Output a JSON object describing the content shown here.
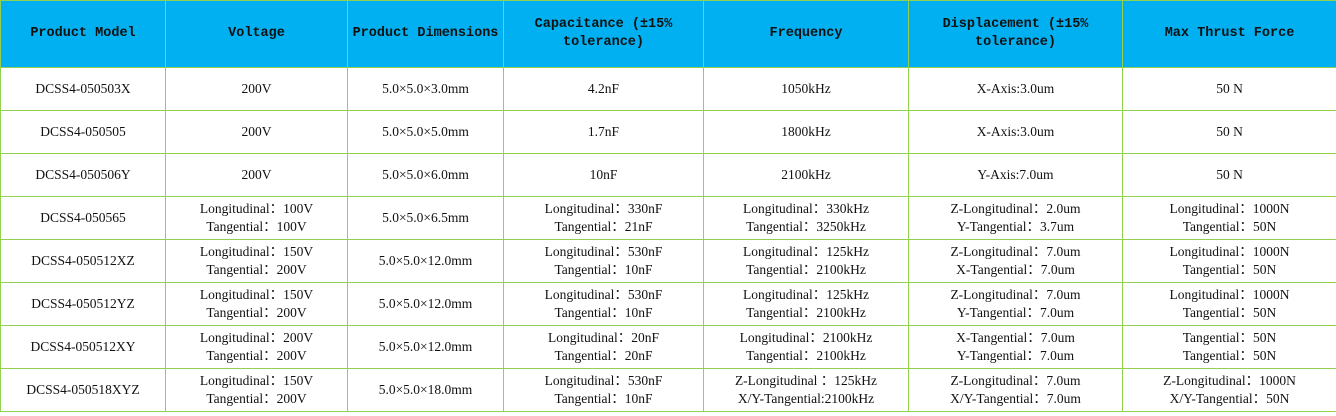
{
  "colors": {
    "header_bg": "#00b0f0",
    "border": "#92d050"
  },
  "headers": [
    "Product Model",
    "Voltage",
    "Product Dimensions",
    "Capacitance (±15% tolerance)",
    "Frequency",
    "Displacement (±15% tolerance)",
    "Max Thrust Force"
  ],
  "rows": [
    [
      [
        "DCSS4-050503X"
      ],
      [
        "200V"
      ],
      [
        "5.0×5.0×3.0mm"
      ],
      [
        "4.2nF"
      ],
      [
        "1050kHz"
      ],
      [
        "X-Axis:3.0um"
      ],
      [
        "50 N"
      ]
    ],
    [
      [
        "DCSS4-050505"
      ],
      [
        "200V"
      ],
      [
        "5.0×5.0×5.0mm"
      ],
      [
        "1.7nF"
      ],
      [
        "1800kHz"
      ],
      [
        "X-Axis:3.0um"
      ],
      [
        "50 N"
      ]
    ],
    [
      [
        "DCSS4-050506Y"
      ],
      [
        "200V"
      ],
      [
        "5.0×5.0×6.0mm"
      ],
      [
        "10nF"
      ],
      [
        "2100kHz"
      ],
      [
        "Y-Axis:7.0um"
      ],
      [
        "50 N"
      ]
    ],
    [
      [
        "DCSS4-050565"
      ],
      [
        "Longitudinal：100V",
        "Tangential：100V"
      ],
      [
        "5.0×5.0×6.5mm"
      ],
      [
        "Longitudinal：330nF",
        "Tangential：21nF"
      ],
      [
        "Longitudinal：330kHz",
        "Tangential：3250kHz"
      ],
      [
        "Z-Longitudinal：2.0um",
        "Y-Tangential：3.7um"
      ],
      [
        "Longitudinal：1000N",
        "Tangential：50N"
      ]
    ],
    [
      [
        "DCSS4-050512XZ"
      ],
      [
        "Longitudinal：150V",
        "Tangential：200V"
      ],
      [
        "5.0×5.0×12.0mm"
      ],
      [
        "Longitudinal：530nF",
        "Tangential：10nF"
      ],
      [
        "Longitudinal：125kHz",
        "Tangential：2100kHz"
      ],
      [
        "Z-Longitudinal：7.0um",
        "X-Tangential：7.0um"
      ],
      [
        "Longitudinal：1000N",
        "Tangential：50N"
      ]
    ],
    [
      [
        "DCSS4-050512YZ"
      ],
      [
        "Longitudinal：150V",
        "Tangential：200V"
      ],
      [
        "5.0×5.0×12.0mm"
      ],
      [
        "Longitudinal：530nF",
        "Tangential：10nF"
      ],
      [
        "Longitudinal：125kHz",
        "Tangential：2100kHz"
      ],
      [
        "Z-Longitudinal：7.0um",
        "Y-Tangential：7.0um"
      ],
      [
        "Longitudinal：1000N",
        "Tangential：50N"
      ]
    ],
    [
      [
        "DCSS4-050512XY"
      ],
      [
        "Longitudinal：200V",
        "Tangential：200V"
      ],
      [
        "5.0×5.0×12.0mm"
      ],
      [
        "Longitudinal：20nF",
        "Tangential：20nF"
      ],
      [
        "Longitudinal：2100kHz",
        "Tangential：2100kHz"
      ],
      [
        "X-Tangential：7.0um",
        "Y-Tangential：7.0um"
      ],
      [
        "Tangential：50N",
        "Tangential：50N"
      ]
    ],
    [
      [
        "DCSS4-050518XYZ"
      ],
      [
        "Longitudinal：150V",
        "Tangential：200V"
      ],
      [
        "5.0×5.0×18.0mm"
      ],
      [
        "Longitudinal：530nF",
        "Tangential：10nF"
      ],
      [
        "Z-Longitudinal ：125kHz",
        "X/Y-Tangential:2100kHz"
      ],
      [
        "Z-Longitudinal：7.0um",
        "X/Y-Tangential：7.0um"
      ],
      [
        "Z-Longitudinal：1000N",
        "X/Y-Tangential：50N"
      ]
    ]
  ]
}
